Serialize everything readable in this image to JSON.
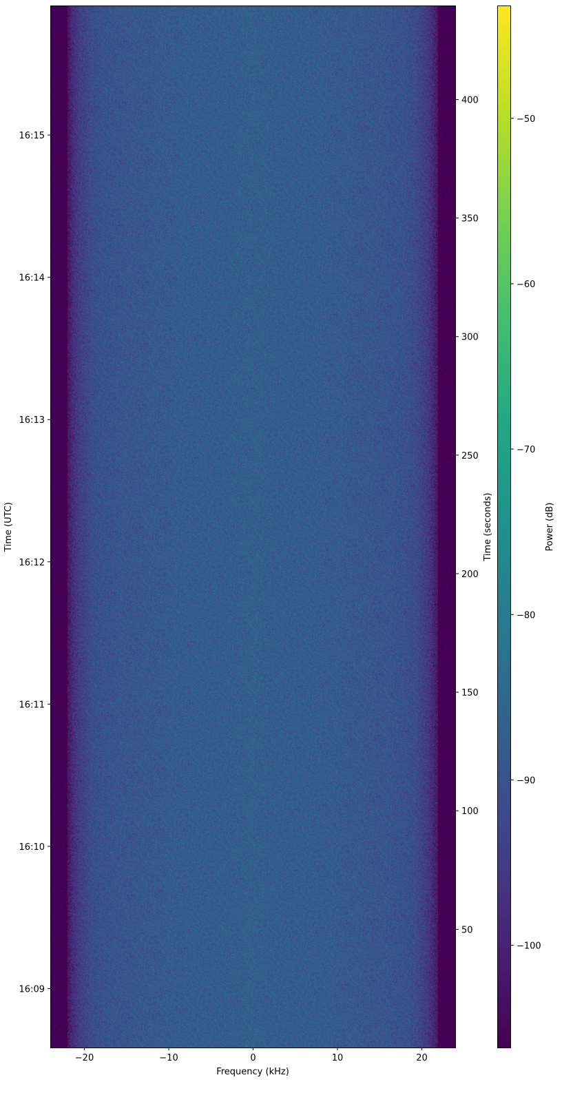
{
  "chart_data": {
    "type": "heatmap",
    "title": "",
    "xlabel": "Frequency (kHz)",
    "ylabel_left": "Time (UTC)",
    "ylabel_right": "Time (seconds)",
    "colorbar_label": "Power (dB)",
    "colormap": "viridis",
    "xlim": [
      -24,
      24
    ],
    "ylim_seconds": [
      0,
      439.5
    ],
    "ylim_utc": [
      "16:08:35",
      "16:15:55"
    ],
    "clim": [
      -106.2,
      -43.2
    ],
    "x_ticks": [
      -20,
      -10,
      0,
      10,
      20
    ],
    "x_tick_labels": [
      "−20",
      "−10",
      "0",
      "10",
      "20"
    ],
    "y_left_ticks_seconds": [
      25,
      85,
      145,
      205,
      265,
      325,
      385
    ],
    "y_left_tick_labels": [
      "16:09",
      "16:10",
      "16:11",
      "16:12",
      "16:13",
      "16:14",
      "16:15"
    ],
    "y_right_ticks": [
      50,
      100,
      150,
      200,
      250,
      300,
      350,
      400
    ],
    "y_right_tick_labels": [
      "50",
      "100",
      "150",
      "200",
      "250",
      "300",
      "350",
      "400"
    ],
    "colorbar_ticks": [
      -100,
      -90,
      -80,
      -70,
      -60,
      -50
    ],
    "colorbar_tick_labels": [
      "−100",
      "−90",
      "−80",
      "−70",
      "−60",
      "−50"
    ],
    "spectrum_profile": {
      "passband_level_db": -87,
      "band_edge_level_db": -95,
      "noise_floor_db": -106,
      "rolloff_start_khz": 15,
      "cutoff_khz": 22
    }
  }
}
